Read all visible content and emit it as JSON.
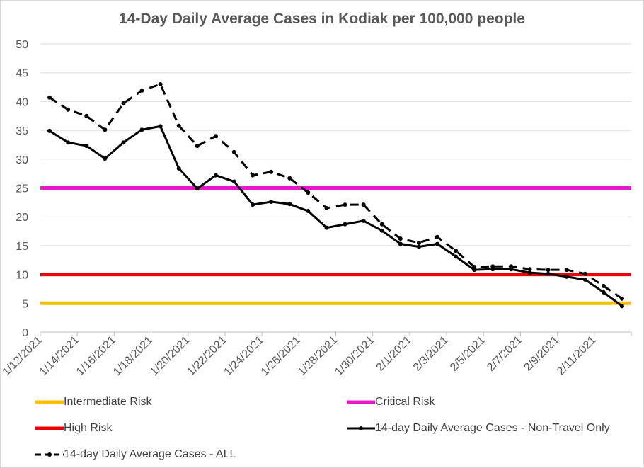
{
  "chart_data": {
    "type": "line",
    "title": "14-Day Daily Average Cases in Kodiak per 100,000 people",
    "xlabel": "",
    "ylabel": "",
    "ylim": [
      0,
      50
    ],
    "y_ticks": [
      "0",
      "5",
      "10",
      "15",
      "20",
      "25",
      "30",
      "35",
      "40",
      "45",
      "50"
    ],
    "x_tick_labels": [
      "1/12/2021",
      "1/14/2021",
      "1/16/2021",
      "1/18/2021",
      "1/20/2021",
      "1/22/2021",
      "1/24/2021",
      "1/26/2021",
      "1/28/2021",
      "1/30/2021",
      "2/1/2021",
      "2/3/2021",
      "2/5/2021",
      "2/7/2021",
      "2/9/2021",
      "2/11/2021"
    ],
    "dates": [
      "2021-01-12",
      "2021-01-13",
      "2021-01-14",
      "2021-01-15",
      "2021-01-16",
      "2021-01-17",
      "2021-01-18",
      "2021-01-19",
      "2021-01-20",
      "2021-01-21",
      "2021-01-22",
      "2021-01-23",
      "2021-01-24",
      "2021-01-25",
      "2021-01-26",
      "2021-01-27",
      "2021-01-28",
      "2021-01-29",
      "2021-01-30",
      "2021-01-31",
      "2021-02-01",
      "2021-02-02",
      "2021-02-03",
      "2021-02-04",
      "2021-02-05",
      "2021-02-06",
      "2021-02-07",
      "2021-02-08",
      "2021-02-09",
      "2021-02-10",
      "2021-02-11",
      "2021-02-12"
    ],
    "grid": true,
    "legend_position": "bottom",
    "series": [
      {
        "name": "Intermediate Risk",
        "style": "threshold",
        "color": "#ffc000",
        "value": 5
      },
      {
        "name": "Critical Risk",
        "style": "threshold",
        "color": "#e619c8",
        "value": 25
      },
      {
        "name": "High Risk",
        "style": "threshold",
        "color": "#ee0000",
        "value": 10
      },
      {
        "name": "14-day Daily Average Cases - Non-Travel Only",
        "style": "solid",
        "color": "#000000",
        "values": [
          34.9,
          32.9,
          32.3,
          30.1,
          32.9,
          35.1,
          35.7,
          28.4,
          24.9,
          27.2,
          26.1,
          22.1,
          22.6,
          22.2,
          21.0,
          18.1,
          18.7,
          19.3,
          17.6,
          15.3,
          14.8,
          15.3,
          13.1,
          10.8,
          10.9,
          10.9,
          10.3,
          10.1,
          9.6,
          9.1,
          6.9,
          4.5
        ]
      },
      {
        "name": "14-day Daily Average Cases - ALL",
        "style": "dashed",
        "color": "#000000",
        "values": [
          40.7,
          38.6,
          37.5,
          35.1,
          39.7,
          41.9,
          43.0,
          35.8,
          32.3,
          34.0,
          31.2,
          27.2,
          27.8,
          26.7,
          24.2,
          21.5,
          22.1,
          22.1,
          18.7,
          16.2,
          15.5,
          16.5,
          14.1,
          11.3,
          11.4,
          11.4,
          10.9,
          10.8,
          10.8,
          10.1,
          8.0,
          5.8
        ]
      }
    ]
  }
}
